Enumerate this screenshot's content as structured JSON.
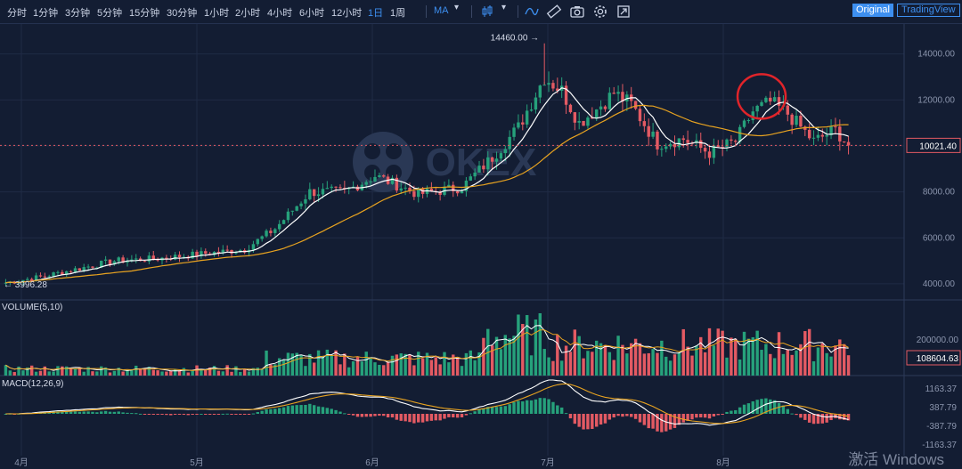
{
  "toolbar": {
    "timeframes": [
      "分时",
      "1分钟",
      "3分钟",
      "5分钟",
      "15分钟",
      "30分钟",
      "1小时",
      "2小时",
      "4小时",
      "6小时",
      "12小时",
      "1日",
      "1周"
    ],
    "active_timeframe": "1日",
    "indicator": "MA",
    "mode_original": "Original",
    "mode_tradingview": "TradingView",
    "icons": [
      "candlestick-type-icon",
      "line-study-icon",
      "ruler-icon",
      "camera-icon",
      "settings-gear-icon",
      "fullscreen-icon"
    ]
  },
  "watermark": {
    "text": "OKEX"
  },
  "price_axis": {
    "ticks": [
      "14000.00",
      "12000.00",
      "10000.00",
      "8000.00",
      "6000.00",
      "4000.00"
    ],
    "tick_values": [
      14000,
      12000,
      10000,
      8000,
      6000,
      4000
    ],
    "current_price": "10021.40",
    "high_label": "14460.00",
    "low_label": "3996.28"
  },
  "volume_pane": {
    "label": "VOLUME(5,10)",
    "ticks": [
      "200000.00"
    ],
    "current_value": "108604.63"
  },
  "macd_pane": {
    "label": "MACD(12,26,9)",
    "ticks": [
      "1163.37",
      "387.79",
      "-387.79",
      "-1163.37"
    ]
  },
  "time_axis": {
    "labels": [
      "4月",
      "5月",
      "6月",
      "7月",
      "8月"
    ]
  },
  "os_watermark": "激活 Windows",
  "colors": {
    "background": "#131d33",
    "up": "#26a17b",
    "down": "#e35a63",
    "ma_short": "#ffffff",
    "ma_long": "#e8a320",
    "annotation_circle": "#e0242a",
    "accent": "#3d8ff0"
  },
  "chart_data": {
    "type": "candlestick",
    "price_range": [
      3300,
      15300
    ],
    "anchor_points": [
      {
        "day": 0,
        "price": 4050
      },
      {
        "day": 8,
        "price": 4300
      },
      {
        "day": 25,
        "price": 5000
      },
      {
        "day": 35,
        "price": 5100
      },
      {
        "day": 45,
        "price": 5300
      },
      {
        "day": 55,
        "price": 5500
      },
      {
        "day": 62,
        "price": 6400
      },
      {
        "day": 70,
        "price": 8000
      },
      {
        "day": 78,
        "price": 8000
      },
      {
        "day": 85,
        "price": 8700
      },
      {
        "day": 95,
        "price": 7900
      },
      {
        "day": 105,
        "price": 8200
      },
      {
        "day": 112,
        "price": 9500
      },
      {
        "day": 118,
        "price": 10800
      },
      {
        "day": 124,
        "price": 13000
      },
      {
        "day": 128,
        "price": 12400
      },
      {
        "day": 132,
        "price": 11000
      },
      {
        "day": 136,
        "price": 11600
      },
      {
        "day": 140,
        "price": 12300
      },
      {
        "day": 144,
        "price": 11800
      },
      {
        "day": 150,
        "price": 10100
      },
      {
        "day": 156,
        "price": 10300
      },
      {
        "day": 162,
        "price": 9700
      },
      {
        "day": 168,
        "price": 10200
      },
      {
        "day": 172,
        "price": 11500
      },
      {
        "day": 176,
        "price": 11900
      },
      {
        "day": 180,
        "price": 11400
      },
      {
        "day": 186,
        "price": 10200
      },
      {
        "day": 191,
        "price": 10700
      },
      {
        "day": 194,
        "price": 10021
      }
    ],
    "ma_periods": [
      7,
      30
    ],
    "highlighted_zone": {
      "day_from": 171,
      "day_to": 178,
      "note": "top circled"
    }
  }
}
